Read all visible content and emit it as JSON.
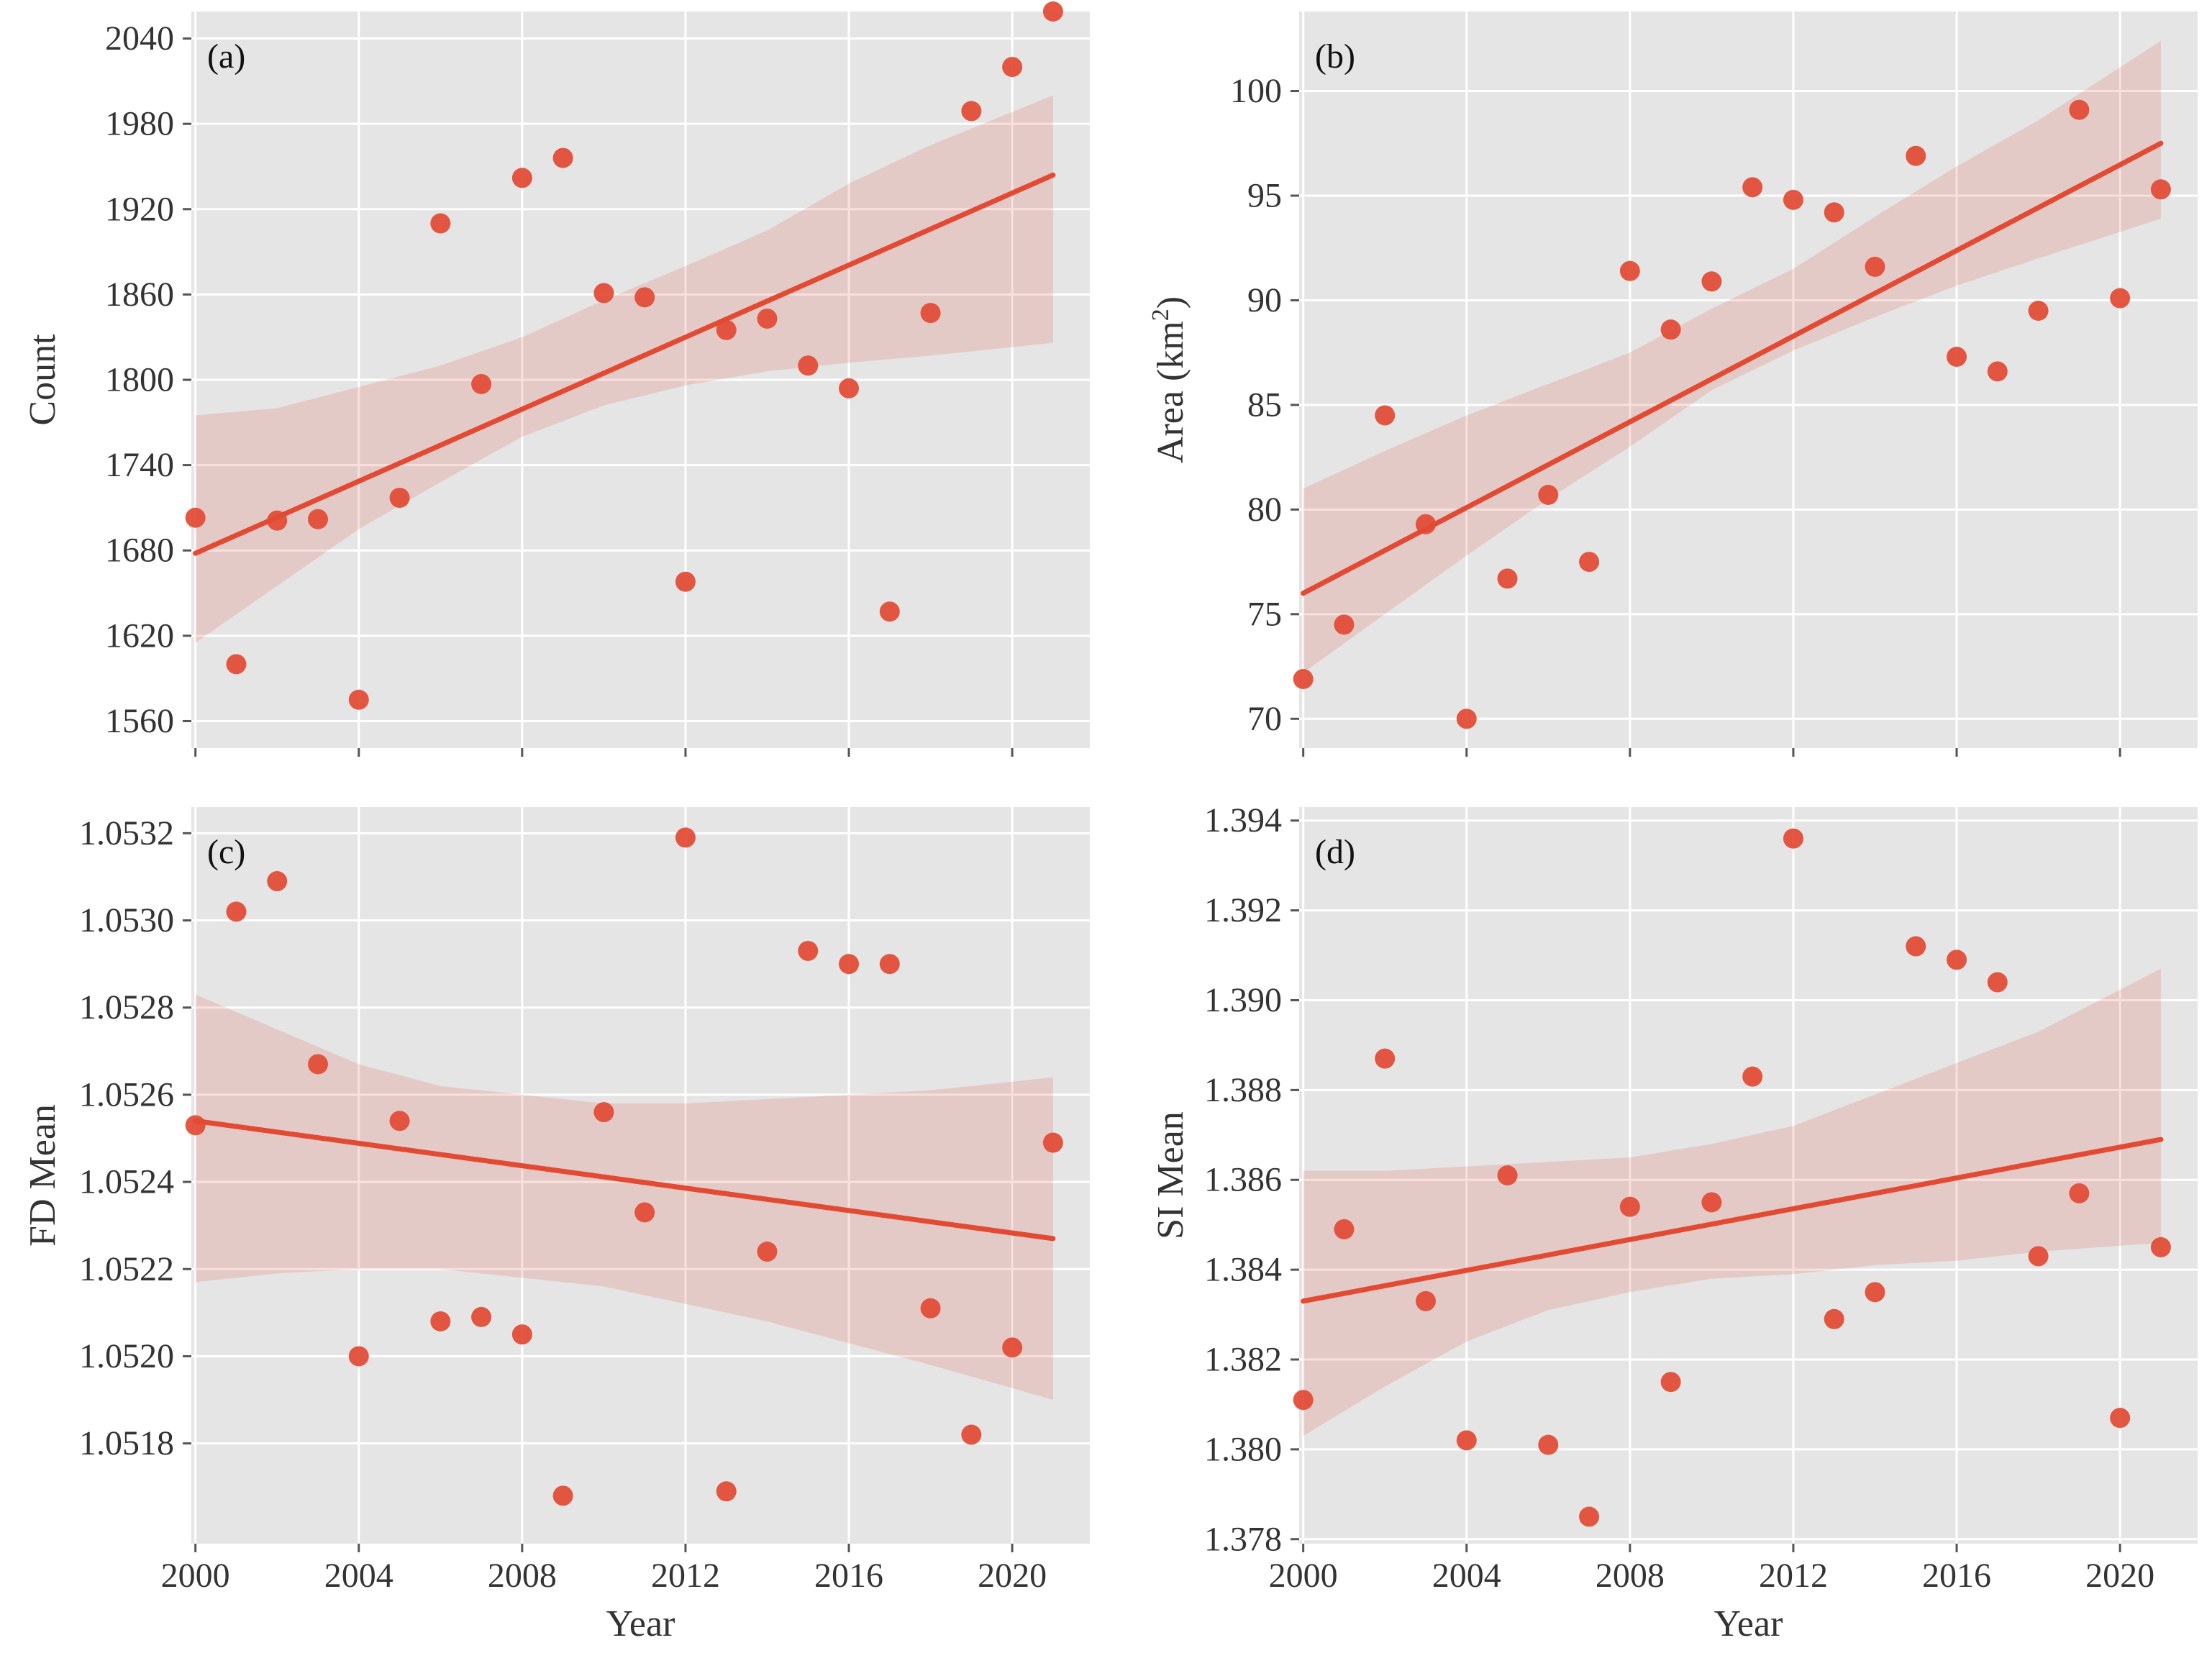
{
  "chart_data": [
    {
      "type": "scatter",
      "panel_label": "(a)",
      "xlabel": "",
      "ylabel": "Count",
      "xlim": [
        1999.9,
        2021.9
      ],
      "ylim": [
        1541,
        2059
      ],
      "xticks": [
        2000,
        2004,
        2008,
        2012,
        2016,
        2020
      ],
      "show_xtick_labels": false,
      "yticks": [
        1560,
        1620,
        1680,
        1740,
        1800,
        1860,
        1920,
        1980,
        2040
      ],
      "ytick_labels": [
        "1560",
        "1620",
        "1680",
        "1740",
        "1800",
        "1860",
        "1920",
        "1980",
        "2040"
      ],
      "grid": true,
      "color": "#e24a33",
      "x": [
        2000,
        2001,
        2002,
        2003,
        2004,
        2005,
        2006,
        2007,
        2008,
        2009,
        2010,
        2011,
        2012,
        2013,
        2014,
        2015,
        2016,
        2017,
        2018,
        2019,
        2020,
        2021
      ],
      "y": [
        1703,
        1600,
        1701,
        1702,
        1575,
        1717,
        1910,
        1797,
        1942,
        1956,
        1861,
        1858,
        1658,
        1835,
        1843,
        1810,
        1794,
        1637,
        1847,
        1989,
        2020,
        2059
      ],
      "trend": [
        [
          2000,
          1678
        ],
        [
          2021,
          1944
        ]
      ],
      "ci": {
        "x": [
          2000,
          2002,
          2004,
          2006,
          2008,
          2010,
          2012,
          2014,
          2016,
          2018,
          2021
        ],
        "lower": [
          1615,
          1655,
          1695,
          1728,
          1760,
          1782,
          1796,
          1806,
          1812,
          1817,
          1826
        ],
        "upper": [
          1775,
          1780,
          1795,
          1810,
          1830,
          1856,
          1880,
          1905,
          1938,
          1965,
          2000
        ]
      }
    },
    {
      "type": "scatter",
      "panel_label": "(b)",
      "xlabel": "",
      "ylabel": "Area (km",
      "ylabel_sup": "2",
      "ylabel_end": ")",
      "xlim": [
        1999.9,
        2021.9
      ],
      "ylim": [
        68.6,
        103.8
      ],
      "xticks": [
        2000,
        2004,
        2008,
        2012,
        2016,
        2020
      ],
      "show_xtick_labels": false,
      "yticks": [
        70,
        75,
        80,
        85,
        90,
        95,
        100
      ],
      "ytick_labels": [
        "70",
        "75",
        "80",
        "85",
        "90",
        "95",
        "100"
      ],
      "grid": true,
      "color": "#e24a33",
      "x": [
        2000,
        2001,
        2002,
        2003,
        2004,
        2005,
        2006,
        2007,
        2008,
        2009,
        2010,
        2011,
        2012,
        2013,
        2014,
        2015,
        2016,
        2017,
        2018,
        2019,
        2020,
        2021
      ],
      "y": [
        71.9,
        74.5,
        84.5,
        79.3,
        70.0,
        76.7,
        80.7,
        77.5,
        91.4,
        88.6,
        90.9,
        95.4,
        94.8,
        94.2,
        91.6,
        96.9,
        87.3,
        86.6,
        89.5,
        99.1,
        90.1,
        95.3
      ],
      "trend": [
        [
          2000,
          76.0
        ],
        [
          2021,
          97.5
        ]
      ],
      "ci": {
        "x": [
          2000,
          2002,
          2004,
          2006,
          2008,
          2010,
          2012,
          2014,
          2016,
          2018,
          2021
        ],
        "lower": [
          72.2,
          75.0,
          77.8,
          80.5,
          83.0,
          85.7,
          87.6,
          89.2,
          90.7,
          92.0,
          93.9
        ],
        "upper": [
          81.0,
          82.8,
          84.5,
          86.0,
          87.5,
          89.6,
          91.5,
          94.0,
          96.4,
          98.6,
          102.4
        ]
      }
    },
    {
      "type": "scatter",
      "panel_label": "(c)",
      "xlabel": "Year",
      "ylabel": "FD Mean",
      "xlim": [
        1999.9,
        2021.9
      ],
      "ylim": [
        1.05157,
        1.05326
      ],
      "xticks": [
        2000,
        2004,
        2008,
        2012,
        2016,
        2020
      ],
      "show_xtick_labels": true,
      "xtick_labels": [
        "2000",
        "2004",
        "2008",
        "2012",
        "2016",
        "2020"
      ],
      "yticks": [
        1.0518,
        1.052,
        1.0522,
        1.0524,
        1.0526,
        1.0528,
        1.053,
        1.0532
      ],
      "ytick_labels": [
        "1.0518",
        "1.0520",
        "1.0522",
        "1.0524",
        "1.0526",
        "1.0528",
        "1.0530",
        "1.0532"
      ],
      "grid": true,
      "color": "#e24a33",
      "x": [
        2000,
        2001,
        2002,
        2003,
        2004,
        2005,
        2006,
        2007,
        2008,
        2009,
        2010,
        2011,
        2012,
        2013,
        2014,
        2015,
        2016,
        2017,
        2018,
        2019,
        2020,
        2021
      ],
      "y": [
        1.05253,
        1.05302,
        1.05309,
        1.05267,
        1.052,
        1.05254,
        1.05208,
        1.05209,
        1.05205,
        1.05168,
        1.05256,
        1.05233,
        1.05319,
        1.05169,
        1.05224,
        1.05293,
        1.0529,
        1.0529,
        1.05211,
        1.05182,
        1.05202,
        1.05249
      ],
      "trend": [
        [
          2000,
          1.05254
        ],
        [
          2021,
          1.05227
        ]
      ],
      "ci": {
        "x": [
          2000,
          2002,
          2004,
          2006,
          2008,
          2010,
          2012,
          2014,
          2016,
          2018,
          2021
        ],
        "lower": [
          1.05217,
          1.05219,
          1.0522,
          1.0522,
          1.05218,
          1.05216,
          1.05212,
          1.05208,
          1.05203,
          1.05198,
          1.0519
        ],
        "upper": [
          1.05283,
          1.05275,
          1.05267,
          1.05262,
          1.0526,
          1.05258,
          1.05258,
          1.05259,
          1.0526,
          1.05261,
          1.05264
        ]
      }
    },
    {
      "type": "scatter",
      "panel_label": "(d)",
      "xlabel": "Year",
      "ylabel": "SI Mean",
      "xlim": [
        1999.9,
        2021.9
      ],
      "ylim": [
        1.3779,
        1.3943
      ],
      "xticks": [
        2000,
        2004,
        2008,
        2012,
        2016,
        2020
      ],
      "show_xtick_labels": true,
      "xtick_labels": [
        "2000",
        "2004",
        "2008",
        "2012",
        "2016",
        "2020"
      ],
      "yticks": [
        1.378,
        1.38,
        1.382,
        1.384,
        1.386,
        1.388,
        1.39,
        1.392,
        1.394
      ],
      "ytick_labels": [
        "1.378",
        "1.380",
        "1.382",
        "1.384",
        "1.386",
        "1.388",
        "1.390",
        "1.392",
        "1.394"
      ],
      "grid": true,
      "color": "#e24a33",
      "x": [
        2000,
        2001,
        2002,
        2003,
        2004,
        2005,
        2006,
        2007,
        2008,
        2009,
        2010,
        2011,
        2012,
        2013,
        2014,
        2015,
        2016,
        2017,
        2018,
        2019,
        2020,
        2021
      ],
      "y": [
        1.3811,
        1.3849,
        1.3887,
        1.3833,
        1.3802,
        1.3861,
        1.3801,
        1.3785,
        1.3854,
        1.3815,
        1.3855,
        1.3883,
        1.3936,
        1.3829,
        1.3835,
        1.3912,
        1.3909,
        1.3904,
        1.3843,
        1.3857,
        1.3807,
        1.3845
      ],
      "trend": [
        [
          2000,
          1.3833
        ],
        [
          2021,
          1.3869
        ]
      ],
      "ci": {
        "x": [
          2000,
          2002,
          2004,
          2006,
          2008,
          2010,
          2012,
          2014,
          2016,
          2018,
          2021
        ],
        "lower": [
          1.3803,
          1.3814,
          1.3824,
          1.3831,
          1.3835,
          1.3838,
          1.3839,
          1.3841,
          1.3842,
          1.3844,
          1.3846
        ],
        "upper": [
          1.3862,
          1.3862,
          1.3863,
          1.3864,
          1.3865,
          1.3868,
          1.3872,
          1.3879,
          1.3886,
          1.3893,
          1.3907
        ]
      }
    }
  ]
}
